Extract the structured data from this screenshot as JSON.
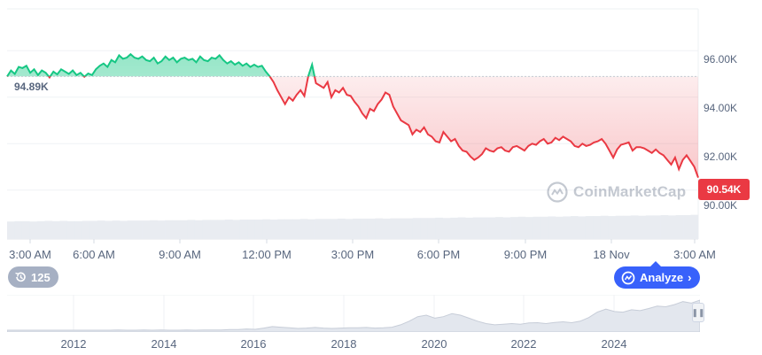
{
  "chart_data": {
    "type": "area",
    "x_tick_labels": [
      "3:00 AM",
      "6:00 AM",
      "9:00 AM",
      "12:00 PM",
      "3:00 PM",
      "6:00 PM",
      "9:00 PM",
      "18 Nov",
      "3:00 AM"
    ],
    "y_tick_labels": [
      "96.00K",
      "94.00K",
      "92.00K",
      "90.00K"
    ],
    "ylim": [
      89000,
      97800
    ],
    "reference_value": 94890,
    "reference_label": "94.89K",
    "current_value_label": "90.54K",
    "colors": {
      "up": "#16c784",
      "down": "#ea3943",
      "reference": "#c4c9d2"
    },
    "series": [
      {
        "values": [
          94890,
          95150,
          95000,
          95300,
          95250,
          95350,
          95050,
          95200,
          94950,
          95150,
          95050,
          94850,
          95100,
          94980,
          95200,
          95100,
          95000,
          95150,
          94950,
          95050,
          94880,
          95020,
          94950,
          95200,
          95350,
          95450,
          95300,
          95600,
          95500,
          95800,
          95650,
          95700,
          95850,
          95700,
          95650,
          95750,
          95600,
          95550,
          95700,
          95450,
          95550,
          95750,
          95600,
          95700,
          95500,
          95650,
          95700,
          95600,
          95650,
          95500,
          95750,
          95600,
          95550,
          95700,
          95650,
          95800,
          95600,
          95450,
          95550,
          95400,
          95500,
          95350,
          95450,
          95300,
          95400,
          95300,
          95350,
          95100,
          94900,
          94650,
          94300,
          94000,
          93700,
          94000,
          93850,
          94100,
          94300,
          94050,
          94900,
          95400,
          94600,
          94500,
          94400,
          94650,
          94000,
          94300,
          94200,
          94400,
          94100,
          94050,
          93800,
          93600,
          93300,
          93100,
          93500,
          93400,
          93700,
          93900,
          94200,
          94100,
          93600,
          93300,
          93000,
          92900,
          92800,
          92400,
          92600,
          92500,
          92700,
          92400,
          92300,
          92100,
          92050,
          92500,
          92300,
          92100,
          92200,
          91900,
          91700,
          91650,
          91450,
          91300,
          91400,
          91550,
          91800,
          91700,
          91650,
          91800,
          91850,
          91700,
          91650,
          91850,
          91900,
          91800,
          91700,
          91900,
          92000,
          91950,
          92100,
          92200,
          92000,
          92050,
          92250,
          92150,
          92300,
          92200,
          92100,
          91900,
          91850,
          92000,
          91900,
          91950,
          92050,
          92100,
          92200,
          92000,
          91700,
          91400,
          91750,
          91950,
          92000,
          92050,
          91700,
          91850,
          91850,
          91800,
          91700,
          91600,
          91750,
          91600,
          91500,
          91300,
          91100,
          91400,
          90900,
          91300,
          91500,
          91250,
          91000,
          90540
        ]
      }
    ],
    "volume": [
      0.55,
      0.56,
      0.56,
      0.55,
      0.56,
      0.57,
      0.56,
      0.57,
      0.56,
      0.56,
      0.57,
      0.57,
      0.58,
      0.57,
      0.58,
      0.57,
      0.58,
      0.58,
      0.58,
      0.59,
      0.58,
      0.59,
      0.59,
      0.59,
      0.6,
      0.59,
      0.6,
      0.6,
      0.6,
      0.61,
      0.6,
      0.61,
      0.61,
      0.61,
      0.62,
      0.61,
      0.62,
      0.62,
      0.62,
      0.63,
      0.62,
      0.63,
      0.63,
      0.63,
      0.64,
      0.63,
      0.64,
      0.64,
      0.64,
      0.65,
      0.64,
      0.65,
      0.65,
      0.65,
      0.66,
      0.66,
      0.66,
      0.67,
      0.66,
      0.67,
      0.68,
      0.67,
      0.68,
      0.68,
      0.68,
      0.69,
      0.68,
      0.69,
      0.7,
      0.69,
      0.7,
      0.7,
      0.71,
      0.7,
      0.71,
      0.72,
      0.71,
      0.72,
      0.72,
      0.73,
      0.72,
      0.73,
      0.73,
      0.74,
      0.73,
      0.74,
      0.74,
      0.75,
      0.74,
      0.75,
      0.75,
      0.76
    ],
    "navigator": {
      "x_tick_labels": [
        "2012",
        "2014",
        "2016",
        "2018",
        "2020",
        "2022",
        "2024"
      ],
      "values": [
        0.0,
        0.0,
        0.0,
        0.0,
        0.0,
        0.0,
        0.0,
        0.0,
        0.0,
        0.0,
        0.0,
        0.0,
        0.0,
        0.01,
        0.0,
        0.0,
        0.01,
        0.0,
        0.01,
        0.0,
        0.0,
        0.01,
        0.0,
        0.01,
        0.01,
        0.01,
        0.02,
        0.02,
        0.04,
        0.03,
        0.07,
        0.12,
        0.1,
        0.08,
        0.06,
        0.07,
        0.09,
        0.07,
        0.06,
        0.07,
        0.08,
        0.08,
        0.09,
        0.07,
        0.08,
        0.1,
        0.18,
        0.3,
        0.45,
        0.5,
        0.4,
        0.45,
        0.55,
        0.5,
        0.4,
        0.3,
        0.22,
        0.18,
        0.2,
        0.22,
        0.2,
        0.24,
        0.25,
        0.22,
        0.26,
        0.28,
        0.25,
        0.3,
        0.42,
        0.6,
        0.7,
        0.62,
        0.6,
        0.68,
        0.65,
        0.72,
        0.8,
        0.78,
        0.85,
        0.95,
        0.9,
        1.0
      ]
    }
  },
  "watermark": {
    "text": "CoinMarketCap"
  },
  "history_button": {
    "label": "125"
  },
  "analyze_button": {
    "label": "Analyze"
  }
}
